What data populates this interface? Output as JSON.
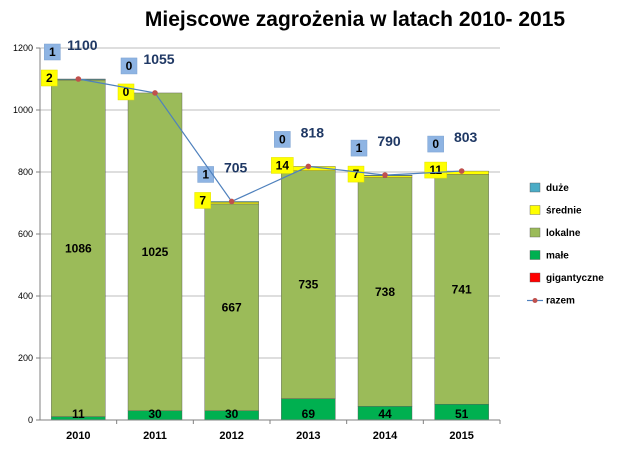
{
  "chart_data": {
    "type": "bar",
    "stacked": true,
    "title": "Miejscowe zagrożenia w latach 2010- 2015",
    "categories": [
      "2010",
      "2011",
      "2012",
      "2013",
      "2014",
      "2015"
    ],
    "ylim": [
      0,
      1200
    ],
    "yticks": [
      0,
      200,
      400,
      600,
      800,
      1000,
      1200
    ],
    "grid": true,
    "legend_position": "right",
    "series": [
      {
        "name": "duże",
        "color": "#4bacc6",
        "values": [
          1,
          0,
          1,
          0,
          1,
          0
        ]
      },
      {
        "name": "średnie",
        "color": "#ffff00",
        "values": [
          2,
          0,
          7,
          14,
          7,
          11
        ]
      },
      {
        "name": "lokalne",
        "color": "#9bbb59",
        "values": [
          1086,
          1025,
          667,
          735,
          738,
          741
        ]
      },
      {
        "name": "małe",
        "color": "#00b050",
        "values": [
          11,
          30,
          30,
          69,
          44,
          51
        ]
      },
      {
        "name": "gigantyczne",
        "color": "#ff0000",
        "values": [
          0,
          0,
          0,
          0,
          0,
          0
        ]
      }
    ],
    "line_series": {
      "name": "razem",
      "color": "#4f81bd",
      "marker_color": "#c0504d",
      "values": [
        1100,
        1055,
        705,
        818,
        790,
        803
      ]
    }
  }
}
